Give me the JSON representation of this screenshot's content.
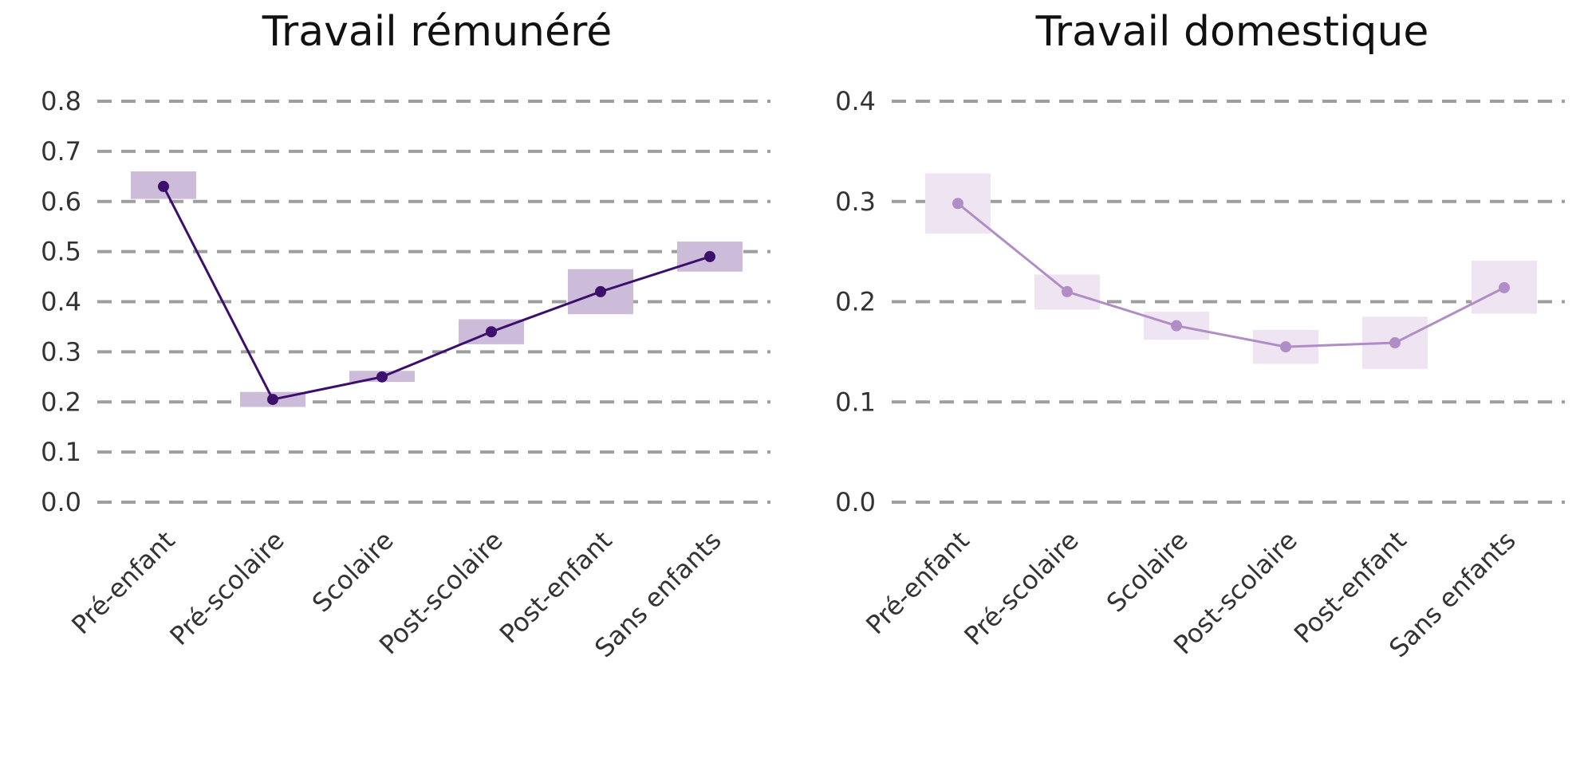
{
  "chart_data": [
    {
      "type": "line",
      "title": "Travail rémunéré",
      "xlabel": "",
      "ylabel": "",
      "categories": [
        "Pré-enfant",
        "Pré-scolaire",
        "Scolaire",
        "Post-scolaire",
        "Post-enfant",
        "Sans enfants"
      ],
      "values": [
        0.63,
        0.205,
        0.25,
        0.34,
        0.42,
        0.49
      ],
      "ci_low": [
        0.605,
        0.19,
        0.24,
        0.315,
        0.375,
        0.46
      ],
      "ci_high": [
        0.66,
        0.22,
        0.262,
        0.365,
        0.465,
        0.52
      ],
      "ylim": [
        0,
        0.8
      ],
      "yticks": [
        "0.0",
        "0.1",
        "0.2",
        "0.3",
        "0.4",
        "0.5",
        "0.6",
        "0.7",
        "0.8"
      ],
      "grid": true,
      "colors": {
        "line": "#3b0f6b",
        "band": "#cdbcd9"
      }
    },
    {
      "type": "line",
      "title": "Travail domestique",
      "xlabel": "",
      "ylabel": "",
      "categories": [
        "Pré-enfant",
        "Pré-scolaire",
        "Scolaire",
        "Post-scolaire",
        "Post-enfant",
        "Sans enfants"
      ],
      "values": [
        0.298,
        0.21,
        0.176,
        0.155,
        0.159,
        0.214
      ],
      "ci_low": [
        0.268,
        0.192,
        0.162,
        0.138,
        0.133,
        0.188
      ],
      "ci_high": [
        0.328,
        0.227,
        0.19,
        0.172,
        0.185,
        0.241
      ],
      "ylim": [
        0,
        0.4
      ],
      "yticks": [
        "0.0",
        "0.1",
        "0.2",
        "0.3",
        "0.4"
      ],
      "grid": true,
      "colors": {
        "line": "#b08dc5",
        "band": "#eee4f2"
      }
    }
  ]
}
